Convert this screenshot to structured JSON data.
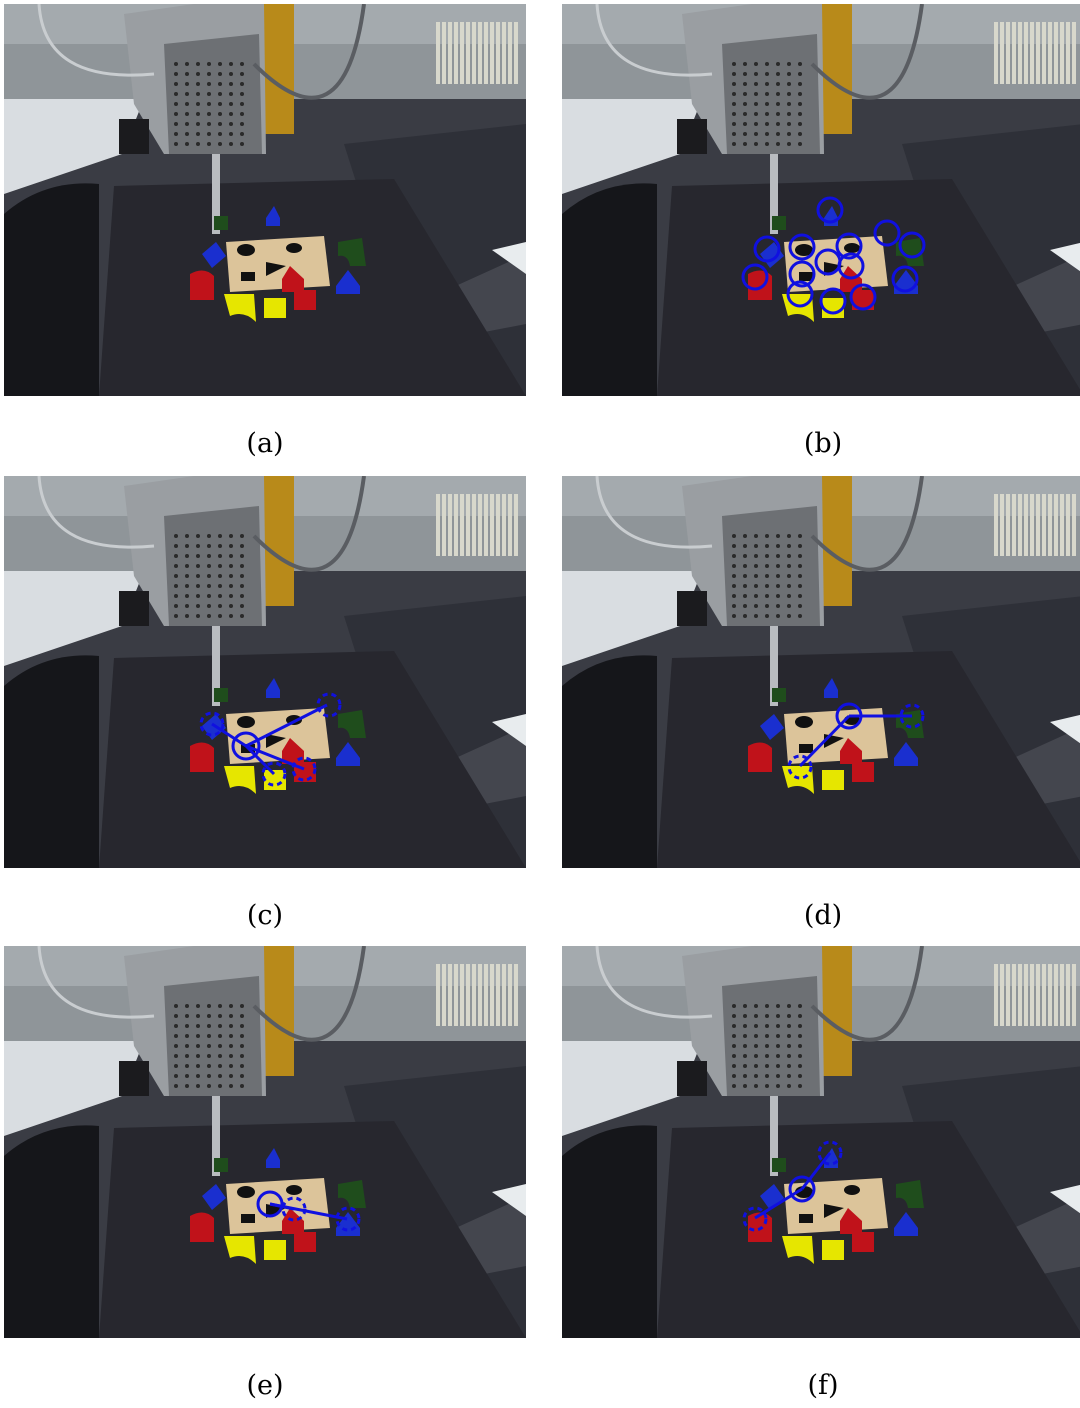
{
  "figure": {
    "panels": [
      {
        "id": "a",
        "caption": "(a)",
        "annotation": "none"
      },
      {
        "id": "b",
        "caption": "(b)",
        "annotation": "all-object-candidates-circled"
      },
      {
        "id": "c",
        "caption": "(c)",
        "annotation": "hub-with-four-links"
      },
      {
        "id": "d",
        "caption": "(d)",
        "annotation": "hub-with-two-links"
      },
      {
        "id": "e",
        "caption": "(e)",
        "annotation": "hub-with-two-links"
      },
      {
        "id": "f",
        "caption": "(f)",
        "annotation": "hub-with-two-links"
      }
    ],
    "colors": {
      "annotation": "#1010e0",
      "block_red": "#c0121a",
      "block_yellow": "#e6e600",
      "block_green": "#1f4d1c",
      "block_blue": "#1a2fcf",
      "board_wood": "#dcc49a"
    }
  }
}
